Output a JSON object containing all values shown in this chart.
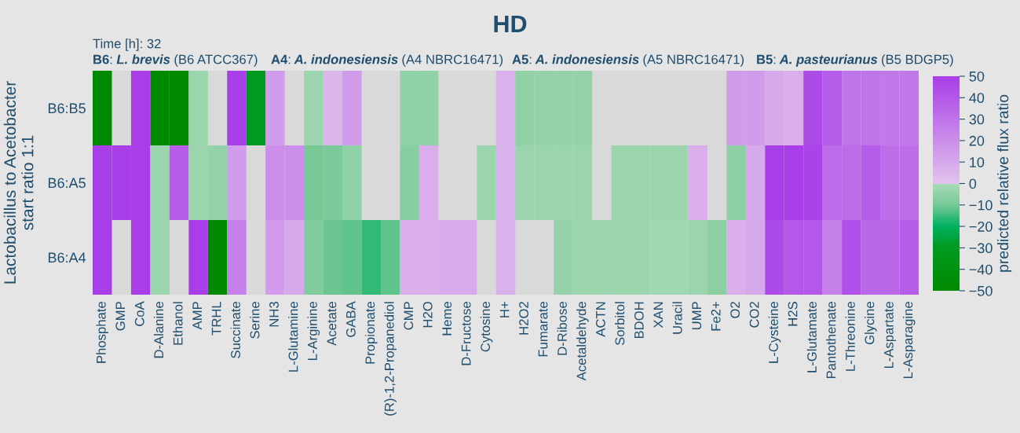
{
  "chart_data": {
    "type": "heatmap",
    "title": "HD",
    "annotations": [
      "Time [h]: 32",
      "B6: L. brevis (B6 ATCC367)",
      "A4: A. indonesiensis (A4 NBRC16471)",
      "A5: A. indonesiensis (A5 NBRC16471)",
      "B5: A. pasteurianus (B5 BDGP5)"
    ],
    "ylabel": "Lactobacillus to Acetobacter\nstart ratio 1:1",
    "clabel": "predicted relative flux ratio",
    "categories": [
      "Phosphate",
      "GMP",
      "CoA",
      "D-Alanine",
      "Ethanol",
      "AMP",
      "TRHL",
      "Succinate",
      "Serine",
      "NH3",
      "L-Glutamine",
      "L-Arginine",
      "Acetate",
      "GABA",
      "Propionate",
      "(R)-1,2-Propanediol",
      "CMP",
      "H2O",
      "Heme",
      "D-Fructose",
      "Cytosine",
      "H+",
      "H2O2",
      "Fumarate",
      "D-Ribose",
      "Acetaldehyde",
      "ACTN",
      "Sorbitol",
      "BDOH",
      "XAN",
      "Uracil",
      "UMP",
      "Fe2+",
      "O2",
      "CO2",
      "L-Cysteine",
      "H2S",
      "L-Glutamate",
      "Pantothenate",
      "L-Threonine",
      "Glycine",
      "L-Aspartate",
      "L-Asparagine"
    ],
    "y_categories": [
      "B6:B5",
      "B6:A5",
      "B6:A4"
    ],
    "cells": [
      [
        -50,
        null,
        50,
        -50,
        -50,
        -3,
        null,
        50,
        -30,
        15,
        null,
        -3,
        5,
        15,
        null,
        null,
        -5,
        -5,
        null,
        null,
        null,
        7,
        -5,
        -4,
        -4,
        -4,
        null,
        null,
        null,
        null,
        null,
        null,
        null,
        15,
        15,
        10,
        8,
        45,
        38,
        30,
        30,
        28,
        28
      ],
      [
        50,
        50,
        50,
        -3,
        38,
        -3,
        -4,
        15,
        null,
        20,
        20,
        -10,
        -9,
        -5,
        null,
        null,
        -7,
        8,
        null,
        null,
        -3,
        7,
        -3,
        -3,
        -3,
        -3,
        null,
        -3,
        -3,
        -3,
        -3,
        8,
        null,
        -6,
        10,
        50,
        50,
        48,
        33,
        33,
        38,
        32,
        32
      ],
      [
        50,
        null,
        50,
        -3,
        null,
        50,
        -50,
        25,
        null,
        15,
        10,
        -8,
        -11,
        -12,
        -16,
        -12,
        8,
        8,
        9,
        9,
        null,
        7,
        null,
        null,
        -4,
        -3,
        -3,
        -3,
        -3,
        -2,
        -2,
        -3,
        -6,
        8,
        10,
        45,
        40,
        40,
        25,
        43,
        35,
        35,
        38
      ]
    ],
    "clim": [
      -50,
      50
    ],
    "cticks": [
      50,
      40,
      30,
      20,
      10,
      0,
      {
        "value": -10,
        "label": "−10"
      },
      {
        "value": -20,
        "label": "−20"
      },
      {
        "value": -30,
        "label": "−30"
      },
      {
        "value": -40,
        "label": "−40"
      },
      {
        "value": -50,
        "label": "−50"
      }
    ]
  }
}
